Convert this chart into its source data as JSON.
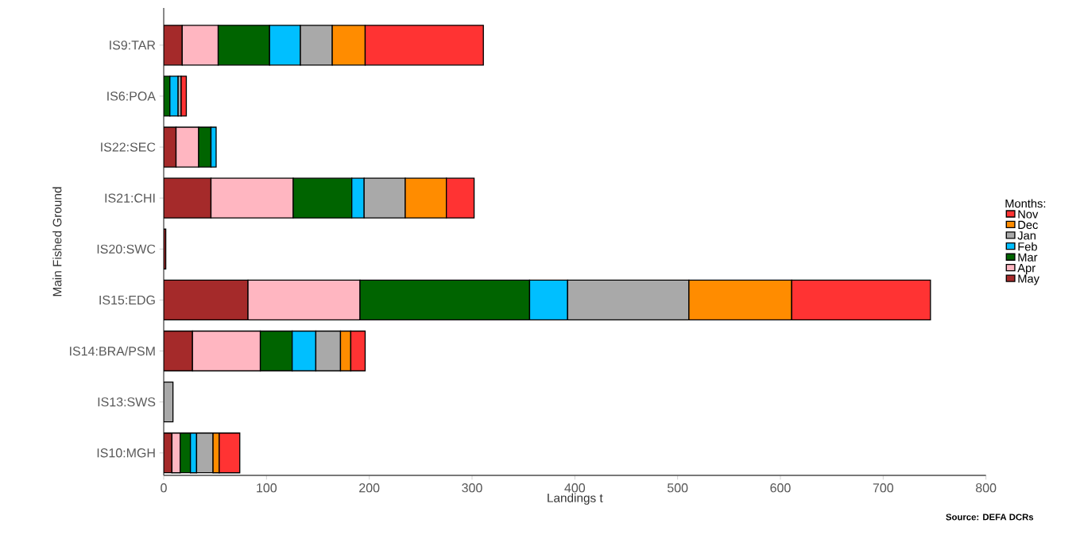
{
  "chart_data": {
    "type": "bar",
    "orientation": "horizontal",
    "stacked": true,
    "categories": [
      "IS9:TAR",
      "IS6:POA",
      "IS22:SEC",
      "IS21:CHI",
      "IS20:SWC",
      "IS15:EDG",
      "IS14:BRA/PSM",
      "IS13:SWS",
      "IS10:MGH"
    ],
    "series": [
      {
        "name": "May",
        "color": "#a52a2a",
        "values": [
          18,
          0,
          12,
          46,
          2,
          82,
          28,
          0,
          8
        ]
      },
      {
        "name": "Apr",
        "color": "#ffb6c1",
        "values": [
          35,
          0,
          22,
          80,
          0,
          109,
          66,
          0,
          8
        ]
      },
      {
        "name": "Mar",
        "color": "#006400",
        "values": [
          50,
          6,
          12,
          57,
          0,
          165,
          31,
          0,
          10
        ]
      },
      {
        "name": "Feb",
        "color": "#00bfff",
        "values": [
          30,
          8,
          5,
          12,
          0,
          37,
          23,
          0,
          6
        ]
      },
      {
        "name": "Jan",
        "color": "#a9a9a9",
        "values": [
          31,
          3,
          0,
          40,
          0,
          118,
          24,
          9,
          16
        ]
      },
      {
        "name": "Dec",
        "color": "#ff8c00",
        "values": [
          32,
          0,
          0,
          40,
          0,
          100,
          10,
          0,
          6
        ]
      },
      {
        "name": "Nov",
        "color": "#ff3333",
        "values": [
          115,
          5,
          0,
          27,
          0,
          135,
          14,
          0,
          20
        ]
      }
    ],
    "xlim": [
      0,
      800
    ],
    "xticks": [
      0,
      100,
      200,
      300,
      400,
      500,
      600,
      700,
      800
    ],
    "xlabel": "Landings t",
    "ylabel": "Main Fished Ground",
    "legend_title": "Months:",
    "legend": "right",
    "grid": false,
    "annotations": [
      "Source: DEFA DCRs"
    ]
  }
}
